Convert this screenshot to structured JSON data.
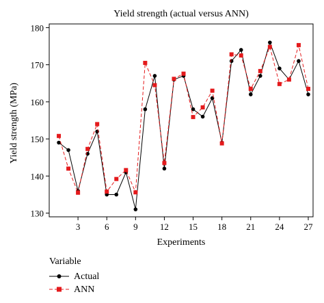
{
  "chart_data": {
    "type": "line",
    "title": "Yield strength (actual versus ANN)",
    "xlabel": "Experiments",
    "ylabel": "Yield strength (MPa)",
    "xlim": [
      0,
      27.5
    ],
    "ylim": [
      129,
      181
    ],
    "xticks": [
      3,
      6,
      9,
      12,
      15,
      18,
      21,
      24,
      27
    ],
    "yticks": [
      130,
      140,
      150,
      160,
      170,
      180
    ],
    "x": [
      1,
      2,
      3,
      4,
      5,
      6,
      7,
      8,
      9,
      10,
      11,
      12,
      13,
      14,
      15,
      16,
      17,
      18,
      19,
      20,
      21,
      22,
      23,
      24,
      25,
      26,
      27
    ],
    "series": [
      {
        "name": "Actual",
        "color": "#000000",
        "marker": "circle",
        "line": "solid",
        "values": [
          149,
          147,
          136,
          146,
          152,
          135,
          135,
          141,
          131,
          158,
          167,
          142,
          166,
          167,
          158,
          156,
          161,
          149,
          171,
          174,
          162,
          167,
          176,
          169,
          166,
          171,
          162
        ]
      },
      {
        "name": "ANN",
        "color": "#e41a1c",
        "marker": "square",
        "line": "dashed",
        "values": [
          150.8,
          142,
          135.5,
          147.3,
          154,
          135.8,
          139.2,
          141.6,
          135.6,
          170.5,
          164.5,
          143.5,
          166.2,
          167.6,
          155.9,
          158.5,
          163,
          148.8,
          172.8,
          172.5,
          163.5,
          168.3,
          174.8,
          164.8,
          166,
          175.3,
          163.5
        ]
      }
    ],
    "legend": {
      "title": "Variable",
      "position": "bottom-left",
      "entries": [
        "Actual",
        "ANN"
      ]
    },
    "grid": false
  }
}
